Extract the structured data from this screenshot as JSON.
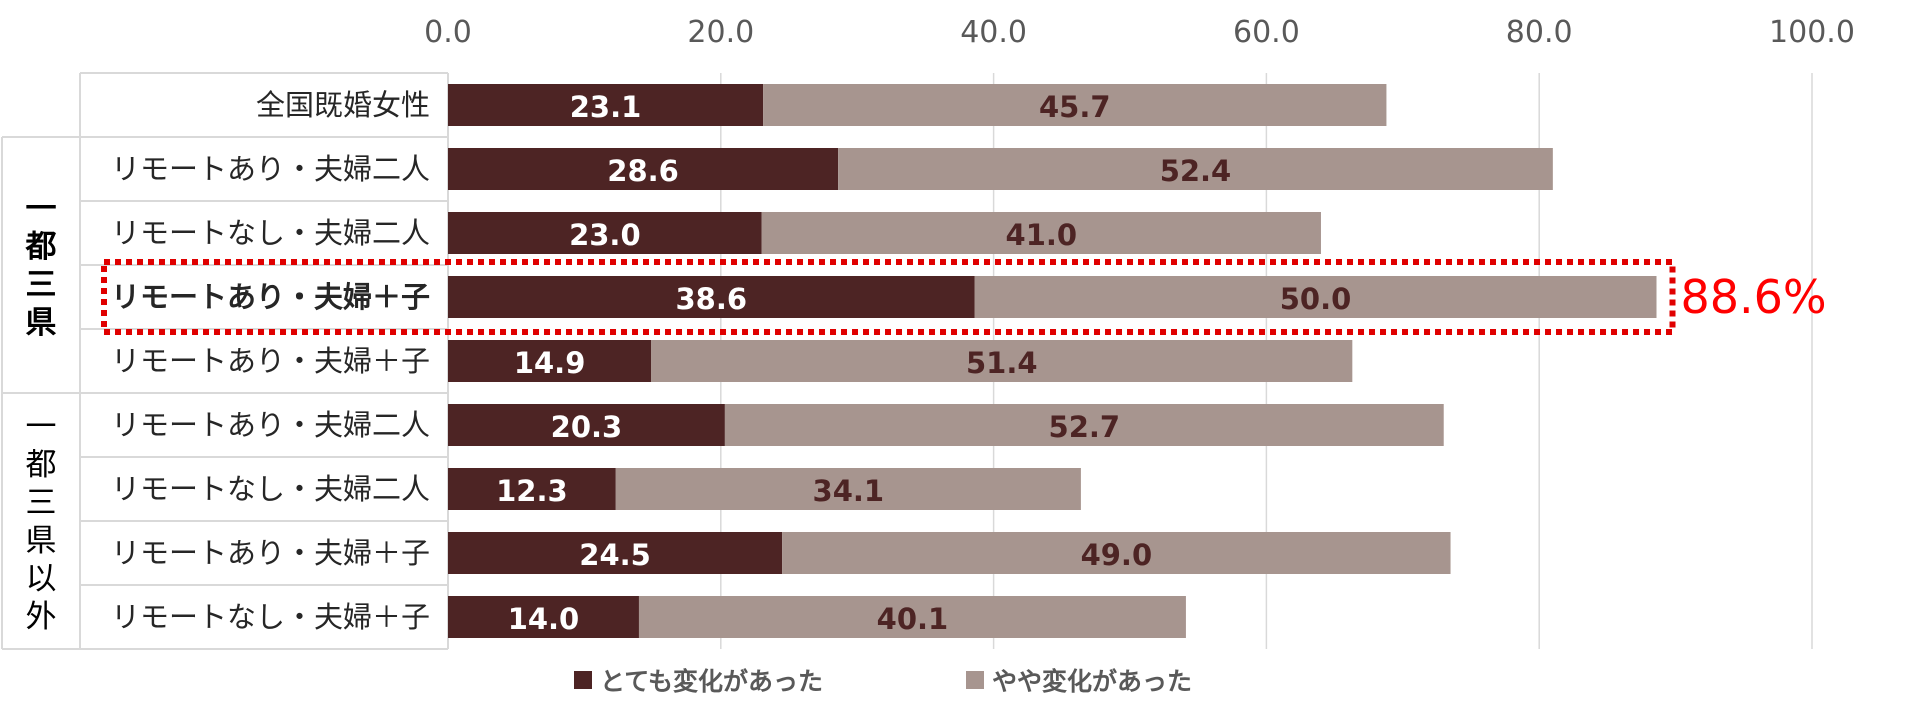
{
  "chart_data": {
    "type": "bar",
    "orientation": "horizontal",
    "stacked": true,
    "xlim": [
      0,
      100
    ],
    "x_ticks": [
      "0.0",
      "20.0",
      "40.0",
      "60.0",
      "80.0",
      "100.0"
    ],
    "grid": true,
    "legend_position": "bottom",
    "groups": [
      {
        "label": "",
        "rows": [
          0
        ]
      },
      {
        "label": "一都三県",
        "rows": [
          1,
          2,
          3,
          4
        ]
      },
      {
        "label": "一都三県以外",
        "rows": [
          5,
          6,
          7,
          8
        ]
      }
    ],
    "categories": [
      "全国既婚女性",
      "リモートあり・夫婦二人",
      "リモートなし・夫婦二人",
      "リモートあり・夫婦＋子",
      "リモートあり・夫婦＋子",
      "リモートあり・夫婦二人",
      "リモートなし・夫婦二人",
      "リモートあり・夫婦＋子",
      "リモートなし・夫婦＋子"
    ],
    "series": [
      {
        "name": "とても変化があった",
        "color": "#4d2424",
        "label_color": "#ffffff",
        "values": [
          23.1,
          28.6,
          23.0,
          38.6,
          14.9,
          20.3,
          12.3,
          24.5,
          14.0
        ],
        "labels": [
          "23.1",
          "28.6",
          "23.0",
          "38.6",
          "14.9",
          "20.3",
          "12.3",
          "24.5",
          "14.0"
        ]
      },
      {
        "name": "やや変化があった",
        "color": "#a7958f",
        "label_color": "#4d2424",
        "values": [
          45.7,
          52.4,
          41.0,
          50.0,
          51.4,
          52.7,
          34.1,
          49.0,
          40.1
        ],
        "labels": [
          "45.7",
          "52.4",
          "41.0",
          "50.0",
          "51.4",
          "52.7",
          "34.1",
          "49.0",
          "40.1"
        ]
      }
    ],
    "highlight": {
      "row": 3,
      "total_label": "88.6%",
      "color": "#e00000"
    }
  }
}
